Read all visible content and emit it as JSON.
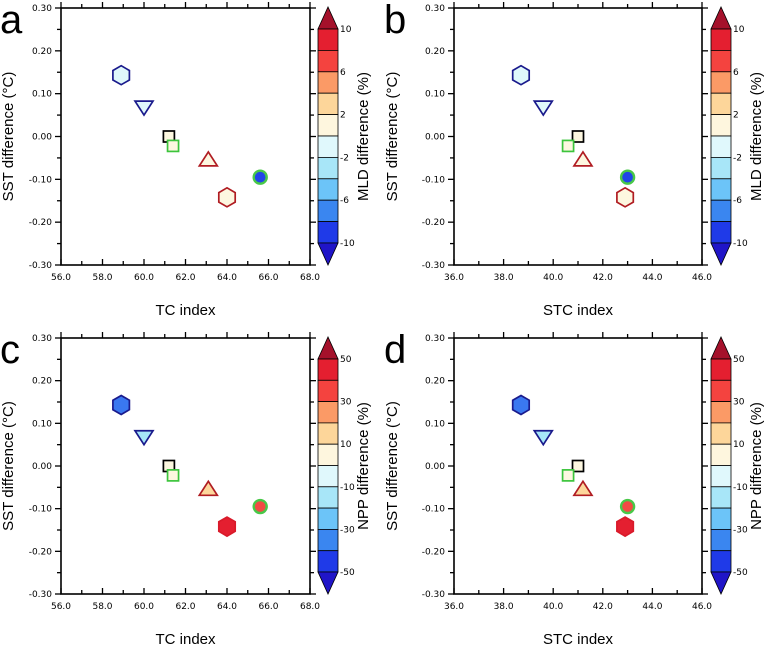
{
  "figure": {
    "description": "Four-panel scatter of SST difference vs TC/STC index, markers colored by MLD or NPP difference"
  },
  "chart_data": [
    {
      "type": "scatter",
      "panel_letter": "a",
      "xlabel": "TC index",
      "ylabel": "SST difference (°C)",
      "xlim": [
        56.0,
        68.0
      ],
      "ylim": [
        -0.3,
        0.3
      ],
      "xticks": [
        "56.0",
        "58.0",
        "60.0",
        "62.0",
        "64.0",
        "66.0",
        "68.0"
      ],
      "yticks": [
        "0.30",
        "0.20",
        "0.10",
        "0.00",
        "-0.10",
        "-0.20",
        "-0.30"
      ],
      "colorbar": {
        "label": "MLD difference (%)",
        "tick_labels": [
          "10",
          "6",
          "2",
          "-2",
          "-6",
          "-10"
        ],
        "levels": [
          10,
          8,
          6,
          4,
          2,
          0,
          -2,
          -4,
          -6,
          -8,
          -10
        ]
      },
      "points": [
        {
          "name": "hexagon-blue",
          "shape": "hexagon",
          "x": 58.9,
          "y": 0.143,
          "edge": "#1a1a8c",
          "fill": "#dff8fb"
        },
        {
          "name": "down-triangle-blue",
          "shape": "triangle-down",
          "x": 60.0,
          "y": 0.07,
          "edge": "#1a1a8c",
          "fill": "#dff8fb"
        },
        {
          "name": "square-black",
          "shape": "square",
          "x": 61.2,
          "y": 0.0,
          "edge": "#000000",
          "fill": "#fdf7e0"
        },
        {
          "name": "square-green",
          "shape": "square",
          "x": 61.4,
          "y": -0.022,
          "edge": "#3cc43c",
          "fill": "#fdf7e0"
        },
        {
          "name": "triangle-red",
          "shape": "triangle-up",
          "x": 63.1,
          "y": -0.056,
          "edge": "#b01c22",
          "fill": "#fdf7e0"
        },
        {
          "name": "hexagon-red",
          "shape": "hexagon",
          "x": 64.0,
          "y": -0.142,
          "edge": "#b01c22",
          "fill": "#fdf7e0"
        },
        {
          "name": "circle-green-edge",
          "shape": "circle",
          "x": 65.6,
          "y": -0.095,
          "edge": "#48c848",
          "fill": "#2145e8"
        }
      ]
    },
    {
      "type": "scatter",
      "panel_letter": "b",
      "xlabel": "STC index",
      "ylabel": "SST difference (°C)",
      "xlim": [
        36.0,
        46.0
      ],
      "ylim": [
        -0.3,
        0.3
      ],
      "xticks": [
        "36.0",
        "38.0",
        "40.0",
        "42.0",
        "44.0",
        "46.0"
      ],
      "yticks": [
        "0.30",
        "0.20",
        "0.10",
        "0.00",
        "-0.10",
        "-0.20",
        "-0.30"
      ],
      "colorbar": {
        "label": "MLD difference (%)",
        "tick_labels": [
          "10",
          "6",
          "2",
          "-2",
          "-6",
          "-10"
        ],
        "levels": [
          10,
          8,
          6,
          4,
          2,
          0,
          -2,
          -4,
          -6,
          -8,
          -10
        ]
      },
      "points": [
        {
          "name": "hexagon-blue",
          "shape": "hexagon",
          "x": 38.7,
          "y": 0.143,
          "edge": "#1a1a8c",
          "fill": "#dff8fb"
        },
        {
          "name": "down-triangle-blue",
          "shape": "triangle-down",
          "x": 39.6,
          "y": 0.07,
          "edge": "#1a1a8c",
          "fill": "#dff8fb"
        },
        {
          "name": "square-black",
          "shape": "square",
          "x": 41.0,
          "y": 0.0,
          "edge": "#000000",
          "fill": "#fdf7e0"
        },
        {
          "name": "square-green",
          "shape": "square",
          "x": 40.6,
          "y": -0.022,
          "edge": "#3cc43c",
          "fill": "#fdf7e0"
        },
        {
          "name": "triangle-red",
          "shape": "triangle-up",
          "x": 41.2,
          "y": -0.056,
          "edge": "#b01c22",
          "fill": "#fdf7e0"
        },
        {
          "name": "hexagon-red",
          "shape": "hexagon",
          "x": 42.9,
          "y": -0.142,
          "edge": "#b01c22",
          "fill": "#fdf7e0"
        },
        {
          "name": "circle-green-edge",
          "shape": "circle",
          "x": 43.0,
          "y": -0.095,
          "edge": "#48c848",
          "fill": "#2145e8"
        }
      ]
    },
    {
      "type": "scatter",
      "panel_letter": "c",
      "xlabel": "TC index",
      "ylabel": "SST difference (°C)",
      "xlim": [
        56.0,
        68.0
      ],
      "ylim": [
        -0.3,
        0.3
      ],
      "xticks": [
        "56.0",
        "58.0",
        "60.0",
        "62.0",
        "64.0",
        "66.0",
        "68.0"
      ],
      "yticks": [
        "0.30",
        "0.20",
        "0.10",
        "0.00",
        "-0.10",
        "-0.20",
        "-0.30"
      ],
      "colorbar": {
        "label": "NPP difference (%)",
        "tick_labels": [
          "50",
          "30",
          "10",
          "-10",
          "-30",
          "-50"
        ],
        "levels": [
          50,
          40,
          30,
          20,
          10,
          0,
          -10,
          -20,
          -30,
          -40,
          -50
        ]
      },
      "points": [
        {
          "name": "hexagon-blue",
          "shape": "hexagon",
          "x": 58.9,
          "y": 0.143,
          "edge": "#1a1a8c",
          "fill": "#3a78f0"
        },
        {
          "name": "down-triangle-blue",
          "shape": "triangle-down",
          "x": 60.0,
          "y": 0.07,
          "edge": "#1a1a8c",
          "fill": "#a6e6f8"
        },
        {
          "name": "square-black",
          "shape": "square",
          "x": 61.2,
          "y": 0.0,
          "edge": "#000000",
          "fill": "#fdf7e0"
        },
        {
          "name": "square-green",
          "shape": "square",
          "x": 61.4,
          "y": -0.022,
          "edge": "#3cc43c",
          "fill": "#fdf7e0"
        },
        {
          "name": "triangle-red",
          "shape": "triangle-up",
          "x": 63.1,
          "y": -0.056,
          "edge": "#b01c22",
          "fill": "#fdd79c"
        },
        {
          "name": "hexagon-red",
          "shape": "hexagon",
          "x": 64.0,
          "y": -0.142,
          "edge": "#d91a2a",
          "fill": "#e41f30"
        },
        {
          "name": "circle-green-edge",
          "shape": "circle",
          "x": 65.6,
          "y": -0.095,
          "edge": "#48c848",
          "fill": "#f24a44"
        }
      ]
    },
    {
      "type": "scatter",
      "panel_letter": "d",
      "xlabel": "STC index",
      "ylabel": "SST difference (°C)",
      "xlim": [
        36.0,
        46.0
      ],
      "ylim": [
        -0.3,
        0.3
      ],
      "xticks": [
        "36.0",
        "38.0",
        "40.0",
        "42.0",
        "44.0",
        "46.0"
      ],
      "yticks": [
        "0.30",
        "0.20",
        "0.10",
        "0.00",
        "-0.10",
        "-0.20",
        "-0.30"
      ],
      "colorbar": {
        "label": "NPP difference (%)",
        "tick_labels": [
          "50",
          "30",
          "10",
          "-10",
          "-30",
          "-50"
        ],
        "levels": [
          50,
          40,
          30,
          20,
          10,
          0,
          -10,
          -20,
          -30,
          -40,
          -50
        ]
      },
      "points": [
        {
          "name": "hexagon-blue",
          "shape": "hexagon",
          "x": 38.7,
          "y": 0.143,
          "edge": "#1a1a8c",
          "fill": "#3a78f0"
        },
        {
          "name": "down-triangle-blue",
          "shape": "triangle-down",
          "x": 39.6,
          "y": 0.07,
          "edge": "#1a1a8c",
          "fill": "#a6e6f8"
        },
        {
          "name": "square-black",
          "shape": "square",
          "x": 41.0,
          "y": 0.0,
          "edge": "#000000",
          "fill": "#fdf7e0"
        },
        {
          "name": "square-green",
          "shape": "square",
          "x": 40.6,
          "y": -0.022,
          "edge": "#3cc43c",
          "fill": "#fdf7e0"
        },
        {
          "name": "triangle-red",
          "shape": "triangle-up",
          "x": 41.2,
          "y": -0.056,
          "edge": "#b01c22",
          "fill": "#fdd79c"
        },
        {
          "name": "hexagon-red",
          "shape": "hexagon",
          "x": 42.9,
          "y": -0.142,
          "edge": "#d91a2a",
          "fill": "#e41f30"
        },
        {
          "name": "circle-green-edge",
          "shape": "circle",
          "x": 43.0,
          "y": -0.095,
          "edge": "#48c848",
          "fill": "#f24a44"
        }
      ]
    }
  ],
  "colorbar_colors": {
    "top_triangle": "#a5112b",
    "boxes": [
      "#e41f30",
      "#f4433f",
      "#fb9a66",
      "#fdd69a",
      "#fef6de",
      "#e0f8fc",
      "#a8e6f8",
      "#6cc4f8",
      "#3a86f0",
      "#1f3ae8"
    ],
    "bottom_triangle": "#2015c8"
  }
}
